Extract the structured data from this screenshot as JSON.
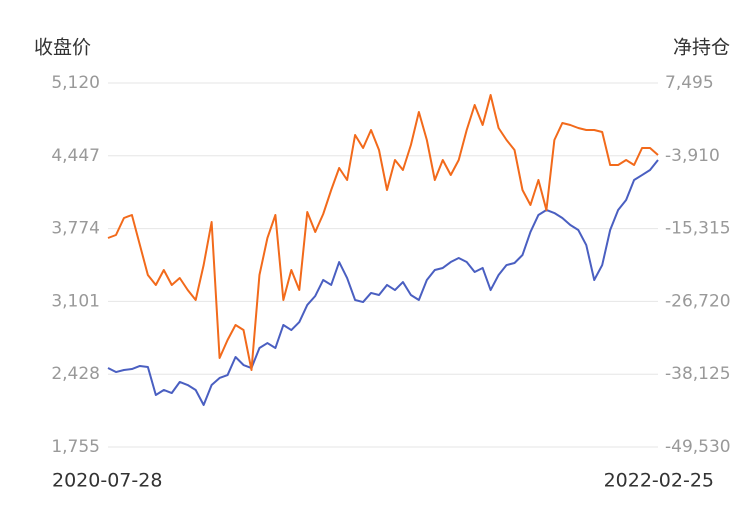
{
  "chart_data": {
    "type": "line",
    "y_label": "收盘价",
    "y2_label": "净持仓",
    "categories": [
      "2020-07-28",
      null,
      null,
      null,
      null,
      null,
      null,
      null,
      null,
      null,
      null,
      null,
      null,
      null,
      null,
      null,
      null,
      null,
      null,
      null,
      null,
      null,
      null,
      null,
      null,
      null,
      null,
      null,
      null,
      null,
      null,
      null,
      null,
      null,
      null,
      null,
      null,
      null,
      null,
      null,
      null,
      null,
      null,
      null,
      null,
      null,
      null,
      null,
      null,
      null,
      null,
      null,
      null,
      null,
      null,
      null,
      null,
      null,
      null,
      null,
      null,
      null,
      null,
      null,
      null,
      null,
      null,
      null,
      null,
      "2022-02-25"
    ],
    "series": [
      {
        "name": "收盘价",
        "color": "#4a5fc1",
        "axis": "y",
        "values": [
          2485,
          2448,
          2467,
          2476,
          2504,
          2495,
          2236,
          2282,
          2254,
          2356,
          2328,
          2282,
          2143,
          2328,
          2393,
          2420,
          2587,
          2513,
          2485,
          2670,
          2716,
          2670,
          2883,
          2836,
          2910,
          3068,
          3151,
          3299,
          3253,
          3465,
          3317,
          3114,
          3095,
          3179,
          3160,
          3253,
          3206,
          3280,
          3160,
          3114,
          3299,
          3391,
          3410,
          3465,
          3502,
          3465,
          3373,
          3410,
          3206,
          3345,
          3437,
          3456,
          3530,
          3743,
          3900,
          3946,
          3918,
          3872,
          3807,
          3761,
          3622,
          3299,
          3437,
          3761,
          3946,
          4038,
          4223,
          4269,
          4316,
          4408
        ]
      },
      {
        "name": "净持仓",
        "color": "#f26a1b",
        "axis": "y2",
        "values": [
          -16787,
          -16317,
          -13654,
          -13184,
          -17884,
          -22584,
          -24150,
          -21800,
          -24150,
          -23054,
          -24934,
          -26500,
          -21017,
          -14281,
          -35587,
          -32767,
          -30417,
          -31200,
          -37466,
          -22584,
          -16787,
          -13184,
          -26500,
          -21800,
          -24934,
          -12714,
          -15847,
          -13027,
          -9268,
          -5821,
          -7701,
          -651,
          -2688,
          132,
          -3001,
          -9268,
          -4568,
          -6134,
          -2218,
          2952,
          -1435,
          -7701,
          -4568,
          -6918,
          -4568,
          132,
          4048,
          915,
          5615,
          445,
          -1435,
          -3001,
          -9268,
          -11618,
          -7701,
          -12401,
          -1435,
          1229,
          915,
          445,
          132,
          132,
          -181,
          -5351,
          -5351,
          -4568,
          -5351,
          -2688,
          -2688,
          -3785
        ]
      }
    ],
    "ylim": [
      1755,
      5120
    ],
    "yticks": [
      {
        "value": 1755,
        "label": "1,755"
      },
      {
        "value": 2428,
        "label": "2,428"
      },
      {
        "value": 3101,
        "label": "3,101"
      },
      {
        "value": 3774,
        "label": "3,774"
      },
      {
        "value": 4447,
        "label": "4,447"
      },
      {
        "value": 5120,
        "label": "5,120"
      }
    ],
    "y2lim": [
      -49530,
      7495
    ],
    "y2ticks": [
      {
        "value": -49530,
        "label": "-49,530"
      },
      {
        "value": -38125,
        "label": "-38,125"
      },
      {
        "value": -26720,
        "label": "-26,720"
      },
      {
        "value": -15315,
        "label": "-15,315"
      },
      {
        "value": -3910,
        "label": "-3,910"
      },
      {
        "value": 7495,
        "label": "7,495"
      }
    ],
    "grid": true
  }
}
